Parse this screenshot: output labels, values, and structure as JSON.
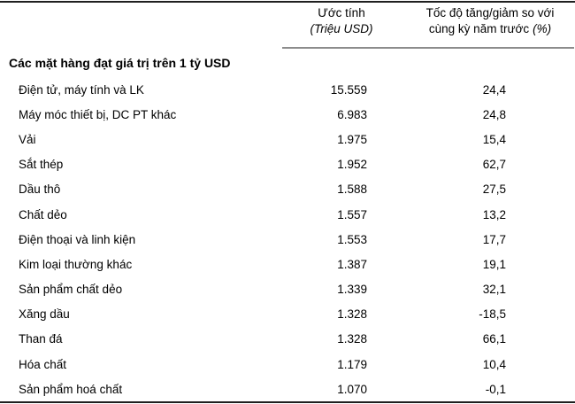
{
  "chart_data": {
    "type": "table",
    "title": "",
    "columns": [
      "",
      "Ước tính (Triệu USD)",
      "Tốc độ tăng/giảm so với cùng kỳ năm trước (%)"
    ],
    "section": "Các mặt hàng đạt giá trị trên 1 tỷ USD",
    "rows": [
      {
        "name": "Điện tử, máy tính và LK",
        "value_trieu_usd": 15559,
        "growth_pct": 24.4
      },
      {
        "name": "Máy móc thiết bị, DC PT khác",
        "value_trieu_usd": 6983,
        "growth_pct": 24.8
      },
      {
        "name": "Vải",
        "value_trieu_usd": 1975,
        "growth_pct": 15.4
      },
      {
        "name": "Sắt thép",
        "value_trieu_usd": 1952,
        "growth_pct": 62.7
      },
      {
        "name": "Dầu thô",
        "value_trieu_usd": 1588,
        "growth_pct": 27.5
      },
      {
        "name": "Chất dẻo",
        "value_trieu_usd": 1557,
        "growth_pct": 13.2
      },
      {
        "name": "Điện thoại và linh kiện",
        "value_trieu_usd": 1553,
        "growth_pct": 17.7
      },
      {
        "name": "Kim loại thường khác",
        "value_trieu_usd": 1387,
        "growth_pct": 19.1
      },
      {
        "name": "Sản phẩm chất dẻo",
        "value_trieu_usd": 1339,
        "growth_pct": 32.1
      },
      {
        "name": "Xăng dầu",
        "value_trieu_usd": 1328,
        "growth_pct": -18.5
      },
      {
        "name": "Than đá",
        "value_trieu_usd": 1328,
        "growth_pct": 66.1
      },
      {
        "name": "Hóa chất",
        "value_trieu_usd": 1179,
        "growth_pct": 10.4
      },
      {
        "name": "Sản phẩm hoá chất",
        "value_trieu_usd": 1070,
        "growth_pct": -0.1
      }
    ]
  },
  "table": {
    "header": {
      "col2_line1": "Ước tính",
      "col2_line2": "(Triệu USD)",
      "col3_line1": "Tốc độ tăng/giảm so với",
      "col3_line2": "cùng kỳ năm trước",
      "col3_line2_unit": "(%)"
    },
    "section_header": "Các mặt hàng đạt giá trị trên 1 tỷ USD",
    "rows": [
      {
        "name": "Điện tử, máy tính và LK",
        "value": "15.559",
        "growth": "24,4"
      },
      {
        "name": "Máy móc thiết bị, DC PT khác",
        "value": "6.983",
        "growth": "24,8"
      },
      {
        "name": "Vải",
        "value": "1.975",
        "growth": "15,4"
      },
      {
        "name": "Sắt thép",
        "value": "1.952",
        "growth": "62,7"
      },
      {
        "name": "Dầu thô",
        "value": "1.588",
        "growth": "27,5"
      },
      {
        "name": "Chất dẻo",
        "value": "1.557",
        "growth": "13,2"
      },
      {
        "name": "Điện thoại và linh kiện",
        "value": "1.553",
        "growth": "17,7"
      },
      {
        "name": "Kim loại thường khác",
        "value": "1.387",
        "growth": "19,1"
      },
      {
        "name": "Sản phẩm chất dẻo",
        "value": "1.339",
        "growth": "32,1"
      },
      {
        "name": "Xăng dầu",
        "value": "1.328",
        "growth": "-18,5"
      },
      {
        "name": "Than đá",
        "value": "1.328",
        "growth": "66,1"
      },
      {
        "name": "Hóa chất",
        "value": "1.179",
        "growth": "10,4"
      },
      {
        "name": "Sản phẩm hoá chất",
        "value": "1.070",
        "growth": "-0,1"
      }
    ]
  },
  "colors": {
    "background": "#ffffff",
    "text": "#000000",
    "heavy_rule": "#1f1f1f",
    "light_rule": "#8c8c8c"
  }
}
